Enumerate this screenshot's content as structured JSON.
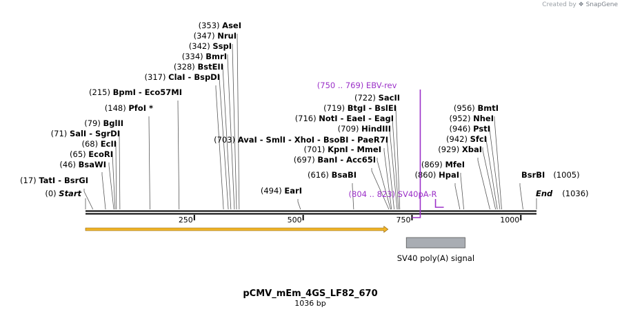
{
  "header": {
    "created_by": "Created by",
    "app": "SnapGene"
  },
  "plasmid": {
    "name": "pCMV_mEm_4GS_LF82_670",
    "length_label": "1036 bp",
    "length": 1036
  },
  "ruler": {
    "ticks": [
      {
        "value": 250,
        "label": "250"
      },
      {
        "value": 500,
        "label": "500"
      },
      {
        "value": 750,
        "label": "750"
      },
      {
        "value": 1000,
        "label": "1000"
      }
    ]
  },
  "ends": {
    "start": {
      "pos": "(0)",
      "label": "Start"
    },
    "end": {
      "pos": "(1036)",
      "label": "End"
    }
  },
  "sites": [
    {
      "pos": "(17)",
      "names": [
        "TatI",
        "BsrGI"
      ],
      "site": 17
    },
    {
      "pos": "(46)",
      "names": [
        "BsaWI"
      ],
      "site": 46
    },
    {
      "pos": "(65)",
      "names": [
        "EcoRI"
      ],
      "site": 65
    },
    {
      "pos": "(68)",
      "names": [
        "EcII"
      ],
      "site": 68
    },
    {
      "pos": "(71)",
      "names": [
        "SalI",
        "SgrDI"
      ],
      "site": 71
    },
    {
      "pos": "(79)",
      "names": [
        "BglII"
      ],
      "site": 79
    },
    {
      "pos": "(148)",
      "names": [
        "PfoI *"
      ],
      "site": 148
    },
    {
      "pos": "(215)",
      "names": [
        "BpmI",
        "Eco57MI"
      ],
      "site": 215
    },
    {
      "pos": "(317)",
      "names": [
        "ClaI",
        "BspDI"
      ],
      "site": 317
    },
    {
      "pos": "(328)",
      "names": [
        "BstEII"
      ],
      "site": 328
    },
    {
      "pos": "(334)",
      "names": [
        "BmrI"
      ],
      "site": 334
    },
    {
      "pos": "(342)",
      "names": [
        "SspI"
      ],
      "site": 342
    },
    {
      "pos": "(347)",
      "names": [
        "NruI"
      ],
      "site": 347
    },
    {
      "pos": "(353)",
      "names": [
        "AseI"
      ],
      "site": 353
    },
    {
      "pos": "(494)",
      "names": [
        "EarI"
      ],
      "site": 494
    },
    {
      "pos": "(616)",
      "names": [
        "BsaBI"
      ],
      "site": 616
    },
    {
      "pos": "(697)",
      "names": [
        "BanI",
        "Acc65I"
      ],
      "site": 697
    },
    {
      "pos": "(701)",
      "names": [
        "KpnI",
        "MmeI"
      ],
      "site": 701
    },
    {
      "pos": "(703)",
      "names": [
        "AvaI",
        "SmlI",
        "XhoI",
        "BsoBI",
        "PaeR7I"
      ],
      "site": 703
    },
    {
      "pos": "(709)",
      "names": [
        "HindIII"
      ],
      "site": 709
    },
    {
      "pos": "(716)",
      "names": [
        "NotI",
        "EaeI",
        "EagI"
      ],
      "site": 716
    },
    {
      "pos": "(719)",
      "names": [
        "BtgI",
        "BslEI"
      ],
      "site": 719
    },
    {
      "pos": "(722)",
      "names": [
        "SacII"
      ],
      "site": 722
    },
    {
      "pos": "(860)",
      "names": [
        "HpaI"
      ],
      "site": 860
    },
    {
      "pos": "(869)",
      "names": [
        "MfeI"
      ],
      "site": 869
    },
    {
      "pos": "(929)",
      "names": [
        "XbaI"
      ],
      "site": 929
    },
    {
      "pos": "(942)",
      "names": [
        "SfcI"
      ],
      "site": 942
    },
    {
      "pos": "(946)",
      "names": [
        "PstI"
      ],
      "site": 946
    },
    {
      "pos": "(952)",
      "names": [
        "NheI"
      ],
      "site": 952
    },
    {
      "pos": "(956)",
      "names": [
        "BmtI"
      ],
      "site": 956
    },
    {
      "pos": "(1005)",
      "names": [
        "BsrBI"
      ],
      "site": 1005
    }
  ],
  "primers": [
    {
      "range": "(750 .. 769)",
      "name": "EBV-rev",
      "start": 750,
      "end": 769,
      "color": "#9b30c8"
    },
    {
      "range": "(804 .. 823)",
      "name": "SV40pA-R",
      "start": 804,
      "end": 823,
      "color": "#9b30c8"
    }
  ],
  "features": [
    {
      "name": "SV40 poly(A) signal",
      "start": 737,
      "end": 872,
      "color": "#a9adb3"
    }
  ],
  "arrow": {
    "start": 0,
    "end": 695,
    "color": "#f0b429"
  }
}
